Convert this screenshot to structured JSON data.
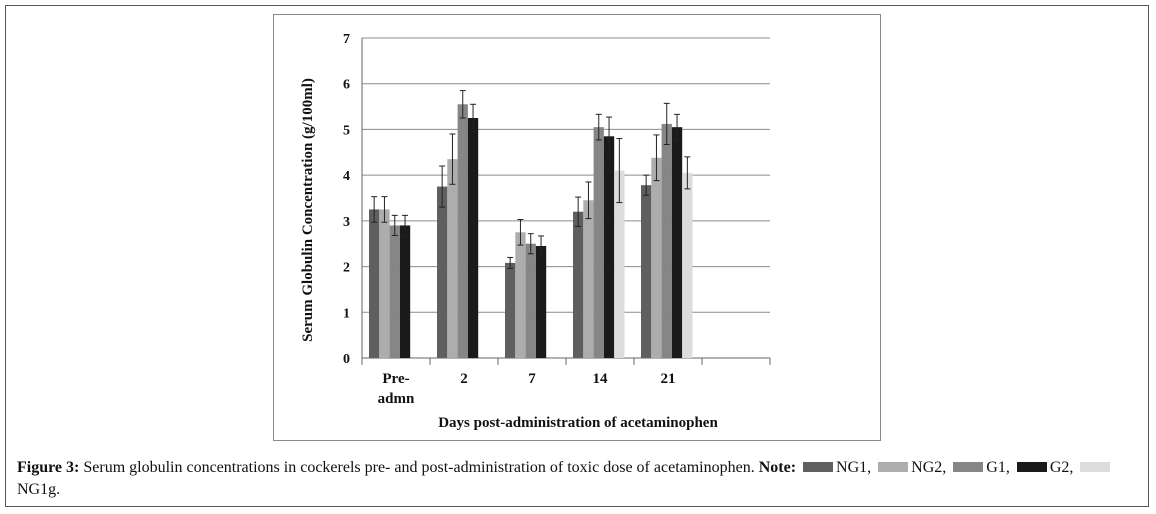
{
  "chart_data": {
    "type": "bar",
    "ylabel": "Serum Globulin Concentration  (g/100ml)",
    "xlabel": "Days post-administration  of acetaminophen",
    "ylim": [
      0,
      7
    ],
    "yticks": [
      "0",
      "1",
      "2",
      "3",
      "4",
      "5",
      "6",
      "7"
    ],
    "categories": [
      {
        "line1": "Pre-",
        "line2": "admn"
      },
      {
        "line1": "2",
        "line2": ""
      },
      {
        "line1": "7",
        "line2": ""
      },
      {
        "line1": "14",
        "line2": ""
      },
      {
        "line1": "21",
        "line2": ""
      }
    ],
    "series": [
      {
        "name": "NG1",
        "color": "#5f5f5f",
        "values": [
          3.25,
          3.75,
          2.08,
          3.2,
          3.78
        ],
        "errors": [
          0.28,
          0.45,
          0.12,
          0.32,
          0.22
        ]
      },
      {
        "name": "NG2",
        "color": "#adadad",
        "values": [
          3.25,
          4.35,
          2.75,
          3.45,
          4.38
        ],
        "errors": [
          0.28,
          0.55,
          0.28,
          0.4,
          0.5
        ]
      },
      {
        "name": "G1",
        "color": "#868686",
        "values": [
          2.9,
          5.55,
          2.5,
          5.05,
          5.12
        ],
        "errors": [
          0.22,
          0.3,
          0.22,
          0.28,
          0.45
        ]
      },
      {
        "name": "G2",
        "color": "#1a1a1a",
        "values": [
          2.9,
          5.25,
          2.45,
          4.85,
          5.05
        ],
        "errors": [
          0.22,
          0.3,
          0.22,
          0.42,
          0.28
        ]
      },
      {
        "name": "NG1g",
        "color": "#dcdcdc",
        "values": [
          null,
          null,
          null,
          4.1,
          4.05
        ],
        "errors": [
          0,
          0,
          0,
          0.7,
          0.35
        ]
      }
    ],
    "grid": true,
    "legend_position": "caption"
  },
  "caption": {
    "figure_label": "Figure 3:",
    "text": "Serum globulin concentrations in cockerels pre- and post-administration of toxic dose of acetaminophen.",
    "note_label": "Note:",
    "legend": [
      {
        "name": "NG1,",
        "color": "#5f5f5f"
      },
      {
        "name": "NG2,",
        "color": "#adadad"
      },
      {
        "name": "G1,",
        "color": "#868686"
      },
      {
        "name": "G2,",
        "color": "#1a1a1a"
      },
      {
        "name": "NG1g.",
        "color": "#dcdcdc"
      }
    ]
  }
}
